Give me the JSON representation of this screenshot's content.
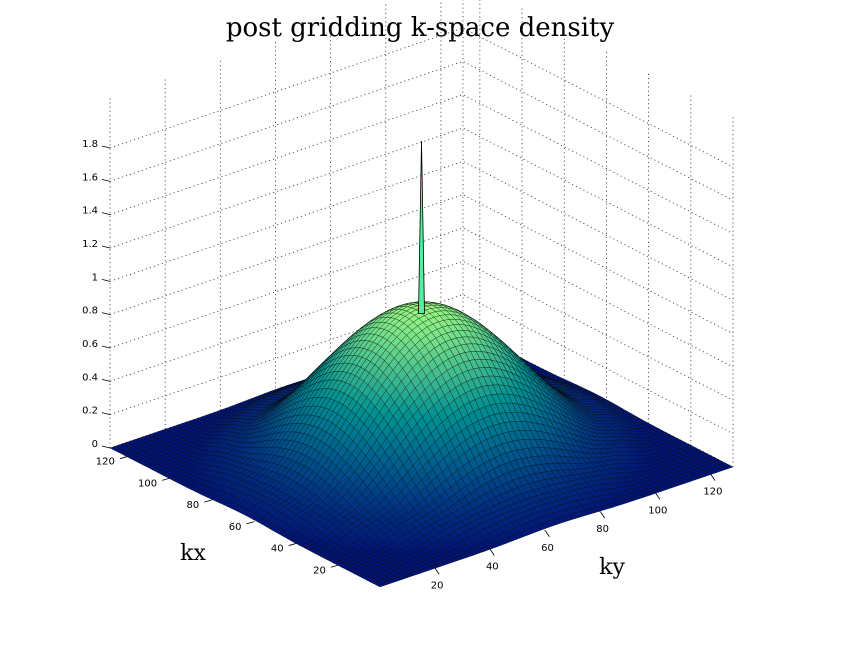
{
  "chart_data": {
    "type": "surface",
    "title": "post gridding k-space density",
    "xlabel": "kx",
    "ylabel": "ky",
    "zlabel": "",
    "xlim": [
      0,
      128
    ],
    "ylim": [
      0,
      128
    ],
    "zlim": [
      0,
      1.8
    ],
    "xticks": [
      20,
      40,
      60,
      80,
      100,
      120
    ],
    "yticks": [
      20,
      40,
      60,
      80,
      100,
      120
    ],
    "zticks": [
      0,
      0.2,
      0.4,
      0.6,
      0.8,
      1,
      1.2,
      1.4,
      1.6,
      1.8
    ],
    "xtick_labels": [
      "20",
      "40",
      "60",
      "80",
      "100",
      "120"
    ],
    "ytick_labels": [
      "20",
      "40",
      "60",
      "80",
      "100",
      "120"
    ],
    "ztick_labels": [
      "0",
      "0.2",
      "0.4",
      "0.6",
      "0.8",
      "1",
      "1.2",
      "1.4",
      "1.6",
      "1.8"
    ],
    "grid": true,
    "colormap": "winter-like (dark blue to green)",
    "surface": {
      "center": [
        64,
        64
      ],
      "peak_value": 0.9,
      "edge_value": 0.0,
      "profile": "smooth radially symmetric dome, near zero beyond radius about 64",
      "spike_value": 1.9
    }
  }
}
